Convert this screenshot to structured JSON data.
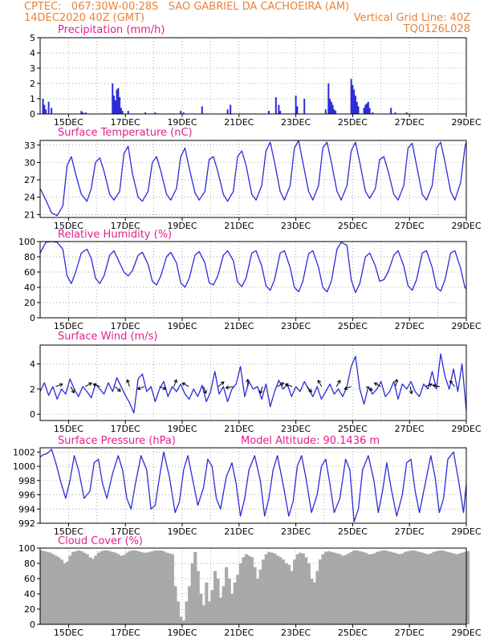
{
  "header": {
    "line1": "CPTEC:   067:30W-00:28S   SAO GABRIEL DA CACHOEIRA (AM)",
    "line2_left": "14DEC2020 40Z (GMT)",
    "line2_right": "Vertical Grid Line: 40Z",
    "line3_right": "TQ0126L028"
  },
  "colors": {
    "header": "#e8823a",
    "panel_title": "#e0208c",
    "line": "#2b2bd8",
    "bars": "#2b2bd8",
    "cloud": "#a9a9a9",
    "arrows": "#000000",
    "grid": "#8c8c8c"
  },
  "chart_data": [
    {
      "type": "bar",
      "title": "Precipitation (mm/h)",
      "ylim": [
        0,
        5
      ],
      "yticks": [
        "0",
        "1",
        "2",
        "3",
        "4",
        "5"
      ],
      "xticks": [
        "15DEC",
        "17DEC",
        "19DEC",
        "21DEC",
        "23DEC",
        "25DEC",
        "27DEC",
        "29DEC"
      ],
      "grid": true,
      "x": [
        14.1,
        14.15,
        14.2,
        14.3,
        14.4,
        15.45,
        15.5,
        15.6,
        16.55,
        16.6,
        16.65,
        16.7,
        16.75,
        16.8,
        16.85,
        16.9,
        17.1,
        17.7,
        18.05,
        18.95,
        19.05,
        19.7,
        20.6,
        20.7,
        22.05,
        22.3,
        22.4,
        22.45,
        23.0,
        23.05,
        23.3,
        24.05,
        24.15,
        24.2,
        24.25,
        24.3,
        24.35,
        24.4,
        24.95,
        25.0,
        25.05,
        25.1,
        25.15,
        25.2,
        25.4,
        25.45,
        25.5,
        25.55,
        25.6,
        25.7,
        26.35,
        26.5,
        26.9
      ],
      "values": [
        1.0,
        0.6,
        0.3,
        0.8,
        0.4,
        0.2,
        0.1,
        0.1,
        2.0,
        1.2,
        0.9,
        1.6,
        1.7,
        1.1,
        0.4,
        0.2,
        0.2,
        0.1,
        0.1,
        0.2,
        0.1,
        0.5,
        0.3,
        0.6,
        0.2,
        1.1,
        0.6,
        0.2,
        1.2,
        0.5,
        1.0,
        0.3,
        2.0,
        1.0,
        0.8,
        0.6,
        0.3,
        0.2,
        2.3,
        1.9,
        1.6,
        1.2,
        0.8,
        0.5,
        0.4,
        0.6,
        0.7,
        0.8,
        0.4,
        0.1,
        0.4,
        0.1,
        0.1
      ]
    },
    {
      "type": "line",
      "title": "Surface Temperature (nC)",
      "ylim": [
        20.5,
        33.8
      ],
      "yticks": [
        "21",
        "24",
        "27",
        "30",
        "33"
      ],
      "xticks": [
        "15DEC",
        "17DEC",
        "19DEC",
        "21DEC",
        "23DEC",
        "25DEC",
        "27DEC",
        "29DEC"
      ],
      "grid": true,
      "x": [
        14.0,
        14.2,
        14.4,
        14.6,
        14.8,
        14.95,
        15.1,
        15.25,
        15.45,
        15.65,
        15.8,
        15.95,
        16.1,
        16.25,
        16.45,
        16.6,
        16.8,
        16.95,
        17.1,
        17.25,
        17.45,
        17.6,
        17.8,
        17.95,
        18.1,
        18.25,
        18.45,
        18.6,
        18.8,
        18.95,
        19.1,
        19.25,
        19.45,
        19.6,
        19.8,
        19.95,
        20.1,
        20.25,
        20.45,
        20.6,
        20.8,
        20.95,
        21.1,
        21.25,
        21.45,
        21.6,
        21.8,
        21.95,
        22.1,
        22.25,
        22.45,
        22.6,
        22.8,
        22.95,
        23.1,
        23.25,
        23.45,
        23.6,
        23.8,
        23.95,
        24.1,
        24.25,
        24.45,
        24.6,
        24.8,
        24.95,
        25.1,
        25.25,
        25.45,
        25.6,
        25.8,
        25.95,
        26.1,
        26.25,
        26.45,
        26.6,
        26.8,
        26.95,
        27.1,
        27.25,
        27.45,
        27.6,
        27.8,
        27.95,
        28.1,
        28.25,
        28.45,
        28.6,
        28.8,
        28.95,
        29.0
      ],
      "values": [
        25.5,
        23.5,
        21.3,
        20.8,
        22.5,
        29.5,
        31.0,
        28.0,
        24.5,
        23.3,
        25.5,
        30.0,
        30.8,
        28.5,
        24.5,
        23.5,
        25.0,
        31.5,
        32.8,
        28.0,
        24.0,
        23.3,
        25.0,
        30.0,
        31.0,
        28.5,
        24.5,
        23.5,
        25.5,
        31.0,
        32.5,
        29.0,
        24.8,
        23.5,
        25.0,
        30.5,
        31.0,
        28.5,
        24.5,
        23.3,
        25.0,
        31.0,
        32.0,
        29.5,
        24.5,
        23.5,
        26.0,
        32.0,
        33.5,
        30.0,
        25.0,
        23.5,
        26.0,
        32.5,
        33.8,
        30.0,
        25.0,
        23.5,
        26.0,
        32.5,
        33.5,
        30.0,
        25.0,
        23.5,
        26.0,
        32.0,
        33.5,
        30.0,
        25.0,
        23.8,
        25.5,
        30.5,
        31.0,
        28.5,
        24.5,
        23.5,
        26.0,
        32.5,
        33.3,
        29.5,
        24.5,
        23.5,
        26.0,
        32.5,
        33.5,
        30.0,
        25.0,
        23.5,
        26.5,
        32.5,
        33.5
      ]
    },
    {
      "type": "line",
      "title": "Relative Humidity (%)",
      "ylim": [
        0,
        100
      ],
      "yticks": [
        "0",
        "20",
        "40",
        "60",
        "80",
        "100"
      ],
      "xticks": [
        "15DEC",
        "17DEC",
        "19DEC",
        "21DEC",
        "23DEC",
        "25DEC",
        "27DEC",
        "29DEC"
      ],
      "grid": true,
      "x": [
        14.0,
        14.2,
        14.4,
        14.6,
        14.8,
        14.95,
        15.1,
        15.25,
        15.45,
        15.65,
        15.8,
        15.95,
        16.1,
        16.25,
        16.45,
        16.6,
        16.8,
        16.95,
        17.1,
        17.25,
        17.45,
        17.6,
        17.8,
        17.95,
        18.1,
        18.25,
        18.45,
        18.6,
        18.8,
        18.95,
        19.1,
        19.25,
        19.45,
        19.6,
        19.8,
        19.95,
        20.1,
        20.25,
        20.45,
        20.6,
        20.8,
        20.95,
        21.1,
        21.25,
        21.45,
        21.6,
        21.8,
        21.95,
        22.1,
        22.25,
        22.45,
        22.6,
        22.8,
        22.95,
        23.1,
        23.25,
        23.45,
        23.6,
        23.8,
        23.95,
        24.1,
        24.25,
        24.45,
        24.6,
        24.8,
        24.95,
        25.1,
        25.25,
        25.45,
        25.6,
        25.8,
        25.95,
        26.1,
        26.25,
        26.45,
        26.6,
        26.8,
        26.95,
        27.1,
        27.25,
        27.45,
        27.6,
        27.8,
        27.95,
        28.1,
        28.25,
        28.45,
        28.6,
        28.8,
        28.95,
        29.0
      ],
      "values": [
        85,
        99,
        100,
        99,
        90,
        55,
        45,
        60,
        85,
        90,
        78,
        52,
        45,
        55,
        82,
        88,
        72,
        60,
        55,
        62,
        82,
        86,
        70,
        48,
        43,
        55,
        80,
        86,
        72,
        46,
        40,
        52,
        82,
        87,
        72,
        46,
        43,
        55,
        82,
        88,
        75,
        47,
        41,
        52,
        85,
        88,
        68,
        42,
        36,
        50,
        85,
        88,
        66,
        40,
        34,
        48,
        84,
        88,
        66,
        40,
        34,
        48,
        90,
        99,
        95,
        50,
        33,
        45,
        80,
        85,
        68,
        48,
        50,
        60,
        82,
        88,
        68,
        42,
        36,
        50,
        85,
        88,
        66,
        40,
        35,
        50,
        85,
        88,
        65,
        40,
        38
      ]
    },
    {
      "type": "line",
      "title": "Surface Wind (m/s)",
      "ylim": [
        -0.5,
        5.5
      ],
      "yticks": [
        "0",
        "2",
        "4"
      ],
      "xticks": [
        "15DEC",
        "17DEC",
        "19DEC",
        "21DEC",
        "23DEC",
        "25DEC",
        "27DEC",
        "29DEC"
      ],
      "grid": true,
      "x": [
        14.0,
        14.15,
        14.3,
        14.45,
        14.6,
        14.75,
        14.9,
        15.05,
        15.2,
        15.35,
        15.5,
        15.65,
        15.8,
        15.95,
        16.1,
        16.25,
        16.4,
        16.55,
        16.7,
        16.85,
        17.0,
        17.15,
        17.3,
        17.45,
        17.6,
        17.75,
        17.9,
        18.05,
        18.2,
        18.35,
        18.5,
        18.65,
        18.8,
        18.95,
        19.1,
        19.25,
        19.4,
        19.55,
        19.7,
        19.85,
        20.0,
        20.15,
        20.3,
        20.45,
        20.6,
        20.75,
        20.9,
        21.05,
        21.2,
        21.35,
        21.5,
        21.65,
        21.8,
        21.95,
        22.1,
        22.25,
        22.4,
        22.55,
        22.7,
        22.85,
        23.0,
        23.15,
        23.3,
        23.45,
        23.6,
        23.75,
        23.9,
        24.05,
        24.2,
        24.35,
        24.5,
        24.65,
        24.8,
        24.95,
        25.1,
        25.25,
        25.4,
        25.55,
        25.7,
        25.85,
        26.0,
        26.15,
        26.3,
        26.45,
        26.6,
        26.75,
        26.9,
        27.05,
        27.2,
        27.35,
        27.5,
        27.65,
        27.8,
        27.95,
        28.1,
        28.25,
        28.4,
        28.55,
        28.7,
        28.85,
        29.0
      ],
      "values": [
        1.8,
        2.5,
        1.5,
        2.2,
        1.2,
        2.0,
        1.6,
        2.8,
        2.0,
        1.4,
        2.2,
        1.8,
        1.3,
        2.4,
        2.0,
        1.6,
        2.5,
        1.8,
        2.9,
        2.2,
        1.5,
        0.9,
        0.1,
        2.8,
        3.2,
        1.8,
        2.2,
        1.0,
        2.0,
        2.6,
        1.4,
        2.2,
        1.8,
        2.4,
        1.6,
        1.2,
        2.0,
        1.4,
        2.3,
        1.0,
        1.8,
        3.4,
        1.6,
        2.2,
        1.0,
        2.0,
        2.4,
        3.8,
        1.4,
        2.6,
        2.0,
        2.2,
        1.2,
        2.4,
        0.6,
        1.8,
        2.7,
        2.0,
        2.4,
        1.4,
        2.2,
        1.8,
        2.6,
        2.0,
        1.4,
        2.2,
        1.2,
        1.8,
        2.4,
        1.6,
        2.0,
        1.4,
        2.2,
        3.8,
        4.6,
        2.0,
        0.8,
        2.2,
        1.6,
        2.0,
        2.6,
        1.4,
        1.8,
        2.6,
        1.2,
        2.4,
        2.0,
        2.6,
        1.8,
        1.4,
        2.4,
        2.0,
        3.4,
        2.0,
        4.8,
        3.0,
        2.0,
        3.6,
        1.8,
        4.0,
        0.3
      ]
    },
    {
      "type": "line",
      "title": "Surface Pressure (hPa)",
      "annotation": "Model Altitude: 90.1436 m",
      "ylim": [
        992,
        1002.6
      ],
      "yticks": [
        "992",
        "994",
        "996",
        "998",
        "1000",
        "1002"
      ],
      "xticks": [
        "15DEC",
        "17DEC",
        "19DEC",
        "21DEC",
        "23DEC",
        "25DEC",
        "27DEC",
        "29DEC"
      ],
      "grid": true,
      "x": [
        14.0,
        14.1,
        14.25,
        14.4,
        14.55,
        14.75,
        14.9,
        15.05,
        15.2,
        15.35,
        15.55,
        15.75,
        15.9,
        16.05,
        16.2,
        16.35,
        16.55,
        16.75,
        16.9,
        17.05,
        17.2,
        17.35,
        17.55,
        17.75,
        17.9,
        18.05,
        18.2,
        18.35,
        18.55,
        18.75,
        18.9,
        19.05,
        19.2,
        19.35,
        19.55,
        19.75,
        19.9,
        20.05,
        20.2,
        20.35,
        20.55,
        20.75,
        20.9,
        21.05,
        21.2,
        21.35,
        21.55,
        21.75,
        21.9,
        22.05,
        22.2,
        22.35,
        22.55,
        22.75,
        22.9,
        23.05,
        23.2,
        23.35,
        23.55,
        23.75,
        23.9,
        24.05,
        24.2,
        24.35,
        24.55,
        24.75,
        24.9,
        25.05,
        25.2,
        25.35,
        25.55,
        25.75,
        25.9,
        26.05,
        26.2,
        26.35,
        26.55,
        26.75,
        26.9,
        27.05,
        27.2,
        27.35,
        27.55,
        27.75,
        27.9,
        28.05,
        28.2,
        28.35,
        28.55,
        28.75,
        28.9,
        29.0
      ],
      "values": [
        1001.3,
        1001.6,
        1001.8,
        1002.4,
        1000.5,
        997.5,
        995.5,
        998.0,
        1001.5,
        999.5,
        995.5,
        996.5,
        1000.5,
        1001.0,
        997.5,
        995.5,
        999.0,
        1001.5,
        999.5,
        995.5,
        994.0,
        997.5,
        1001.5,
        999.5,
        994.0,
        994.5,
        998.5,
        1002.0,
        998.5,
        993.5,
        995.0,
        999.5,
        1001.5,
        998.5,
        994.5,
        997.0,
        1001.0,
        1000.0,
        995.5,
        994.0,
        998.5,
        1000.5,
        997.5,
        993.0,
        995.5,
        999.5,
        1001.5,
        998.0,
        993.0,
        995.5,
        999.5,
        1001.5,
        997.5,
        993.0,
        995.0,
        1000.0,
        1001.5,
        998.5,
        993.5,
        996.0,
        1000.0,
        1001.0,
        997.5,
        993.5,
        995.5,
        1001.0,
        999.5,
        992.2,
        994.0,
        999.5,
        1001.5,
        998.0,
        993.5,
        996.5,
        1000.5,
        997.0,
        993.0,
        996.0,
        1000.5,
        1001.0,
        996.5,
        993.5,
        997.5,
        1001.5,
        998.5,
        993.5,
        995.5,
        1001.0,
        1002.0,
        997.5,
        993.5,
        997.5
      ]
    },
    {
      "type": "bar",
      "title": "Cloud Cover (%)",
      "ylim": [
        0,
        100
      ],
      "yticks": [
        "0",
        "20",
        "40",
        "60",
        "80",
        "100"
      ],
      "xticks": [
        "15DEC",
        "17DEC",
        "19DEC",
        "21DEC",
        "23DEC",
        "25DEC",
        "27DEC",
        "29DEC"
      ],
      "grid": true,
      "x": [
        14.0,
        14.1,
        14.2,
        14.3,
        14.4,
        14.5,
        14.6,
        14.7,
        14.8,
        14.9,
        15.0,
        15.1,
        15.2,
        15.3,
        15.4,
        15.5,
        15.6,
        15.7,
        15.8,
        15.9,
        16.0,
        16.1,
        16.2,
        16.3,
        16.4,
        16.5,
        16.6,
        16.7,
        16.8,
        16.9,
        17.0,
        17.1,
        17.2,
        17.3,
        17.4,
        17.5,
        17.6,
        17.7,
        17.8,
        17.9,
        18.0,
        18.1,
        18.2,
        18.3,
        18.4,
        18.5,
        18.6,
        18.7,
        18.8,
        18.9,
        19.0,
        19.1,
        19.2,
        19.3,
        19.4,
        19.5,
        19.6,
        19.7,
        19.8,
        19.9,
        20.0,
        20.1,
        20.2,
        20.3,
        20.4,
        20.5,
        20.6,
        20.7,
        20.8,
        20.9,
        21.0,
        21.1,
        21.2,
        21.3,
        21.4,
        21.5,
        21.6,
        21.7,
        21.8,
        21.9,
        22.0,
        22.1,
        22.2,
        22.3,
        22.4,
        22.5,
        22.6,
        22.7,
        22.8,
        22.9,
        23.0,
        23.1,
        23.2,
        23.3,
        23.4,
        23.5,
        23.6,
        23.7,
        23.8,
        23.9,
        24.0,
        24.1,
        24.2,
        24.3,
        24.4,
        24.5,
        24.6,
        24.7,
        24.8,
        24.9,
        25.0,
        25.1,
        25.2,
        25.3,
        25.4,
        25.5,
        25.6,
        25.7,
        25.8,
        25.9,
        26.0,
        26.1,
        26.2,
        26.3,
        26.4,
        26.5,
        26.6,
        26.7,
        26.8,
        26.9,
        27.0,
        27.1,
        27.2,
        27.3,
        27.4,
        27.5,
        27.6,
        27.7,
        27.8,
        27.9,
        28.0,
        28.1,
        28.2,
        28.3,
        28.4,
        28.5,
        28.6,
        28.7,
        28.8,
        28.9,
        29.0
      ],
      "values": [
        97,
        96,
        95,
        94,
        92,
        90,
        88,
        85,
        80,
        82,
        90,
        95,
        96,
        97,
        96,
        94,
        92,
        88,
        86,
        90,
        94,
        96,
        97,
        97,
        96,
        95,
        94,
        92,
        90,
        91,
        94,
        96,
        97,
        97,
        96,
        95,
        94,
        94,
        95,
        96,
        97,
        97,
        97,
        96,
        94,
        93,
        92,
        50,
        30,
        10,
        5,
        30,
        50,
        80,
        95,
        70,
        40,
        25,
        55,
        30,
        45,
        70,
        60,
        35,
        50,
        75,
        60,
        40,
        55,
        65,
        80,
        88,
        92,
        90,
        88,
        75,
        60,
        72,
        85,
        92,
        95,
        94,
        93,
        90,
        88,
        85,
        80,
        78,
        70,
        85,
        92,
        94,
        93,
        88,
        80,
        60,
        55,
        70,
        85,
        92,
        95,
        96,
        95,
        94,
        93,
        92,
        90,
        91,
        93,
        95,
        97,
        97,
        96,
        95,
        94,
        92,
        92,
        93,
        95,
        96,
        97,
        97,
        96,
        95,
        94,
        93,
        92,
        93,
        95,
        96,
        97,
        97,
        96,
        95,
        94,
        93,
        92,
        93,
        95,
        96,
        97,
        97,
        96,
        95,
        94,
        93,
        92,
        93,
        94,
        95,
        96
      ]
    }
  ]
}
